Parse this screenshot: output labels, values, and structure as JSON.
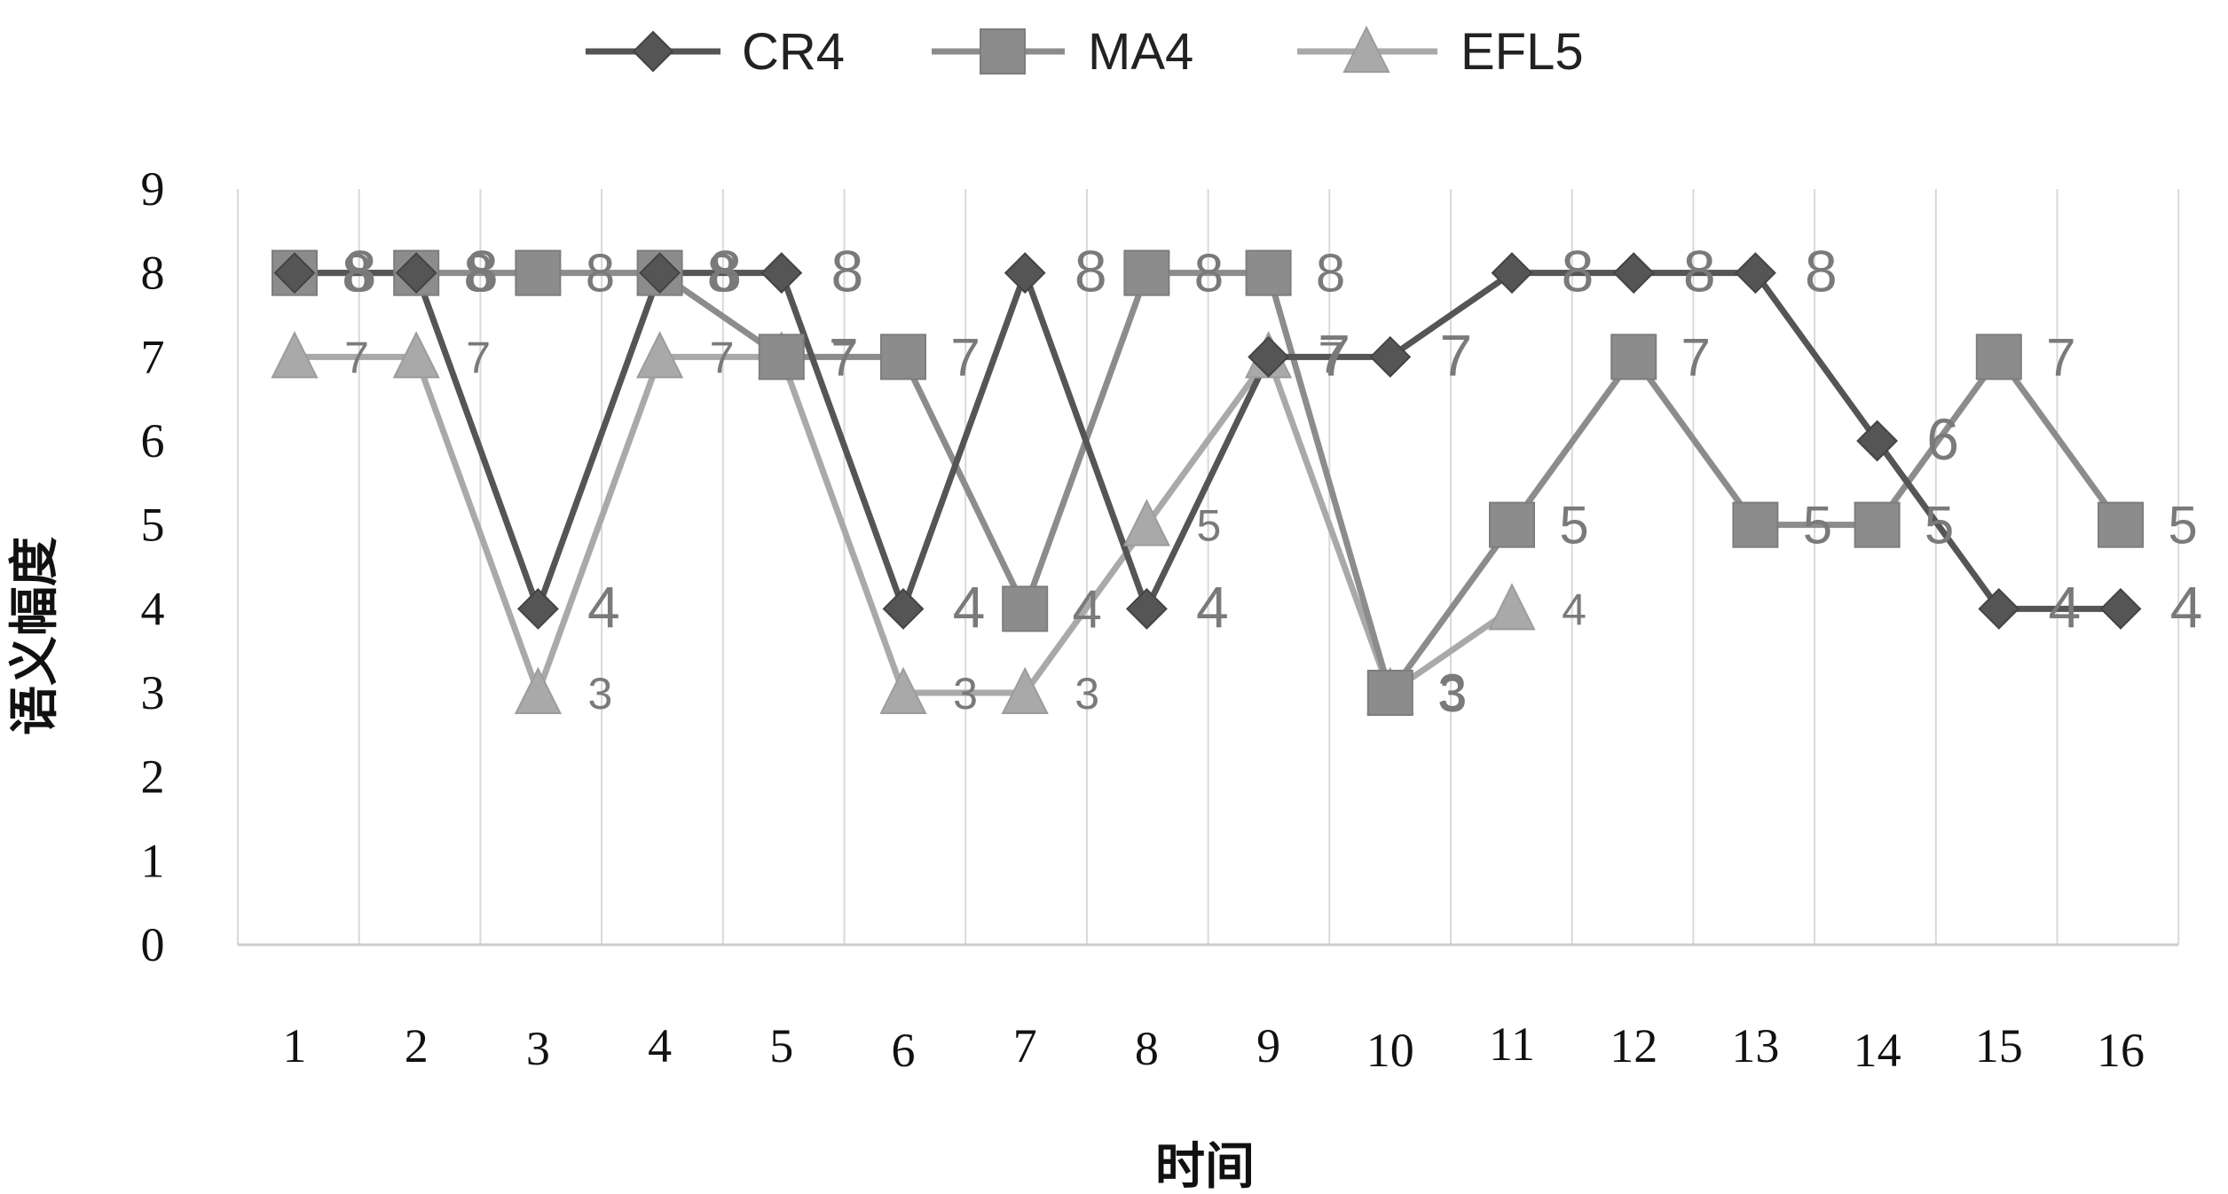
{
  "chart_data": {
    "type": "line",
    "title": "",
    "xlabel": "时间",
    "ylabel": "语义幅度",
    "x": [
      1,
      2,
      3,
      4,
      5,
      6,
      7,
      8,
      9,
      10,
      11,
      12,
      13,
      14,
      15,
      16
    ],
    "x_tick_labels": [
      "1",
      "2",
      "3",
      "4",
      "5",
      "6",
      "7",
      "8",
      "9",
      "10",
      "11",
      "12",
      "13",
      "14",
      "15",
      "16"
    ],
    "y_tick_labels": [
      "0",
      "1",
      "2",
      "3",
      "4",
      "5",
      "6",
      "7",
      "8",
      "9"
    ],
    "ylim": [
      0,
      9
    ],
    "grid": {
      "vertical": true,
      "horizontal": false
    },
    "legend_position": "top",
    "series": [
      {
        "name": "CR4",
        "marker": "diamond",
        "color": "#555555",
        "label_color": "#777777",
        "x_values": [
          1,
          2,
          3,
          4,
          5,
          6,
          7,
          8,
          9,
          10,
          11,
          12,
          13,
          14,
          15,
          16
        ],
        "values": [
          8,
          8,
          4,
          8,
          8,
          4,
          8,
          4,
          7,
          7,
          8,
          8,
          8,
          6,
          4,
          4
        ],
        "labels": [
          "8",
          "8",
          "4",
          "8",
          "8",
          "4",
          "8",
          "4",
          "7",
          "7",
          "8",
          "8",
          "8",
          "6",
          "4",
          "4"
        ]
      },
      {
        "name": "MA4",
        "marker": "square",
        "color": "#8c8c8c",
        "label_color": "#8a8a8a",
        "x_values": [
          1,
          2,
          3,
          4,
          5,
          6,
          7,
          8,
          9,
          10,
          11,
          12,
          13,
          14,
          15,
          16
        ],
        "values": [
          8,
          8,
          8,
          8,
          7,
          7,
          4,
          8,
          8,
          3,
          5,
          7,
          5,
          5,
          7,
          5
        ],
        "labels": [
          "8",
          "8",
          "8",
          "8",
          "7",
          "7",
          "4",
          "8",
          "8",
          "3",
          "5",
          "7",
          "5",
          "5",
          "7",
          "5"
        ]
      },
      {
        "name": "EFL5",
        "marker": "triangle",
        "color": "#a9a9a9",
        "label_color": "#9a9a9a",
        "x_values": [
          1,
          2,
          3,
          4,
          5,
          6,
          7,
          8,
          9,
          10,
          11
        ],
        "values": [
          7,
          7,
          3,
          7,
          7,
          3,
          3,
          5,
          7,
          3,
          4
        ],
        "labels": [
          "7",
          "7",
          "3",
          "7",
          "7",
          "3",
          "3",
          "5",
          "7",
          "3",
          "4"
        ]
      }
    ]
  }
}
